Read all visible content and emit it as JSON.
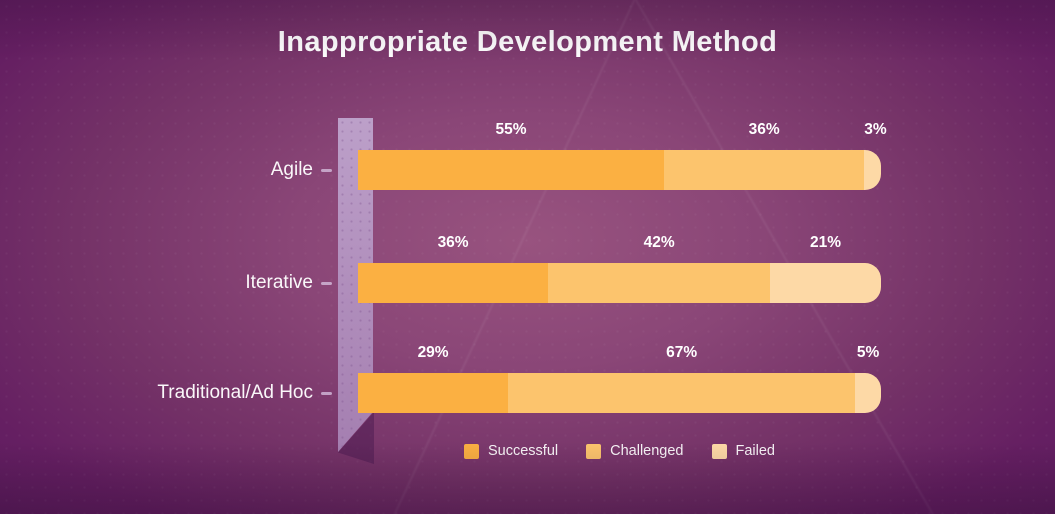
{
  "title": "Inappropriate Development Method",
  "colors": {
    "background_outer": "#5c1c5e",
    "background_center": "#98537f",
    "axis_strip": "#b79cc4",
    "text": "#ffffff",
    "successful": "#fbb042",
    "challenged": "#fcc46d",
    "failed": "#fdd9a6"
  },
  "chart_data": {
    "type": "bar",
    "orientation": "horizontal",
    "stacked": true,
    "title": "Inappropriate Development Method",
    "categories": [
      "Agile",
      "Iterative",
      "Traditional/Ad Hoc"
    ],
    "series": [
      {
        "name": "Successful",
        "color": "#fbb042",
        "values": [
          55,
          36,
          29
        ]
      },
      {
        "name": "Challenged",
        "color": "#fcc46d",
        "values": [
          36,
          42,
          67
        ]
      },
      {
        "name": "Failed",
        "color": "#fdd9a6",
        "values": [
          3,
          21,
          5
        ]
      }
    ],
    "value_labels": [
      [
        "55%",
        "36%",
        "3%"
      ],
      [
        "36%",
        "42%",
        "21%"
      ],
      [
        "29%",
        "67%",
        "5%"
      ]
    ],
    "value_unit": "%",
    "legend": [
      "Successful",
      "Challenged",
      "Failed"
    ],
    "legend_position": "bottom",
    "grid": false
  }
}
